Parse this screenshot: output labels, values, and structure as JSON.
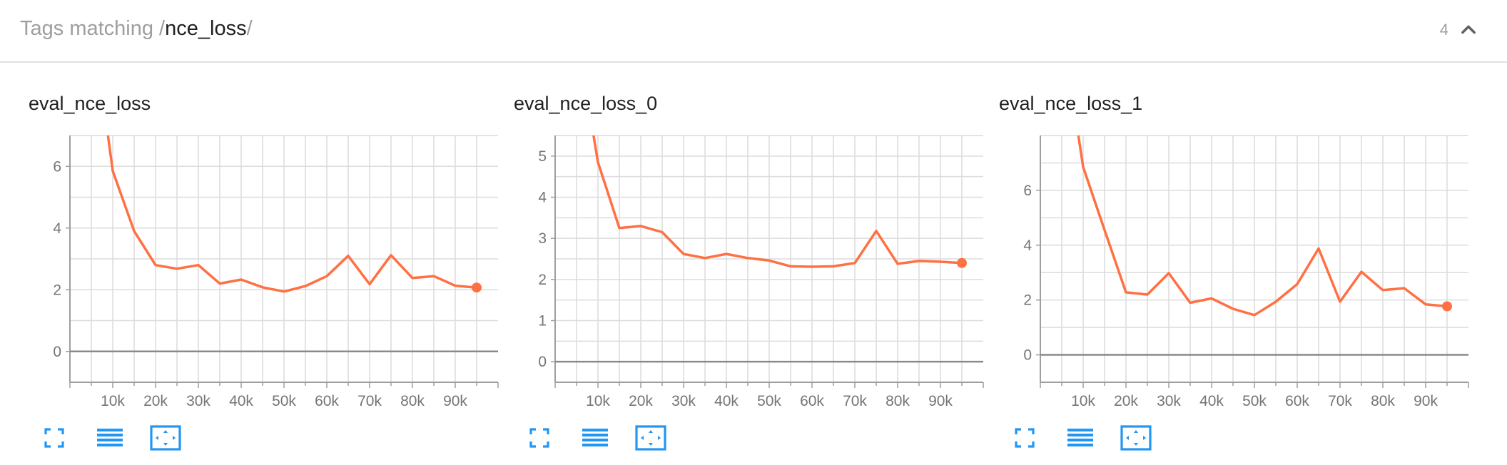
{
  "header": {
    "prefix": "Tags matching /",
    "query": "nce_loss",
    "suffix": "/",
    "count": "4",
    "collapse_icon": "chevron-up-icon"
  },
  "colors": {
    "series": "#ff7043",
    "grid": "#dcdcdc",
    "axis": "#9e9e9e",
    "zero": "#8a8a8a",
    "toolbar": "#2196f3"
  },
  "toolbar_icons": [
    "fullscreen-icon",
    "toggle-y-log-icon",
    "fit-domain-icon"
  ],
  "chart_data": [
    {
      "type": "line",
      "title": "eval_nce_loss",
      "xlim": [
        0,
        100000
      ],
      "ylim": [
        -1,
        7
      ],
      "xticks": [
        10000,
        20000,
        30000,
        40000,
        50000,
        60000,
        70000,
        80000,
        90000
      ],
      "xtick_labels": [
        "10k",
        "20k",
        "30k",
        "40k",
        "50k",
        "60k",
        "70k",
        "80k",
        "90k"
      ],
      "yticks": [
        0,
        2,
        4,
        6
      ],
      "ytick_labels": [
        "0",
        "2",
        "4",
        "6"
      ],
      "grid": true,
      "x": [
        5000,
        10000,
        15000,
        20000,
        25000,
        30000,
        35000,
        40000,
        45000,
        50000,
        55000,
        60000,
        65000,
        70000,
        75000,
        80000,
        85000,
        90000,
        95000
      ],
      "y": [
        11.0,
        5.85,
        3.9,
        2.8,
        2.68,
        2.8,
        2.2,
        2.33,
        2.08,
        1.94,
        2.12,
        2.44,
        3.1,
        2.18,
        3.12,
        2.38,
        2.44,
        2.13,
        2.07
      ]
    },
    {
      "type": "line",
      "title": "eval_nce_loss_0",
      "xlim": [
        0,
        100000
      ],
      "ylim": [
        -0.5,
        5.5
      ],
      "xticks": [
        10000,
        20000,
        30000,
        40000,
        50000,
        60000,
        70000,
        80000,
        90000
      ],
      "xtick_labels": [
        "10k",
        "20k",
        "30k",
        "40k",
        "50k",
        "60k",
        "70k",
        "80k",
        "90k"
      ],
      "yticks": [
        0,
        1,
        2,
        3,
        4,
        5
      ],
      "ytick_labels": [
        "0",
        "1",
        "2",
        "3",
        "4",
        "5"
      ],
      "grid": true,
      "x": [
        5000,
        10000,
        15000,
        20000,
        25000,
        30000,
        35000,
        40000,
        45000,
        50000,
        55000,
        60000,
        65000,
        70000,
        75000,
        80000,
        85000,
        90000,
        95000
      ],
      "y": [
        8.0,
        4.85,
        3.25,
        3.3,
        3.15,
        2.62,
        2.52,
        2.62,
        2.52,
        2.46,
        2.32,
        2.31,
        2.32,
        2.4,
        3.18,
        2.38,
        2.45,
        2.43,
        2.4
      ]
    },
    {
      "type": "line",
      "title": "eval_nce_loss_1",
      "xlim": [
        0,
        100000
      ],
      "ylim": [
        -1,
        8
      ],
      "xticks": [
        10000,
        20000,
        30000,
        40000,
        50000,
        60000,
        70000,
        80000,
        90000
      ],
      "xtick_labels": [
        "10k",
        "20k",
        "30k",
        "40k",
        "50k",
        "60k",
        "70k",
        "80k",
        "90k"
      ],
      "yticks": [
        0,
        2,
        4,
        6
      ],
      "ytick_labels": [
        "0",
        "2",
        "4",
        "6"
      ],
      "grid": true,
      "x": [
        5000,
        10000,
        15000,
        20000,
        25000,
        30000,
        35000,
        40000,
        45000,
        50000,
        55000,
        60000,
        65000,
        70000,
        75000,
        80000,
        85000,
        90000,
        95000
      ],
      "y": [
        12.0,
        6.85,
        4.55,
        2.28,
        2.2,
        2.98,
        1.9,
        2.06,
        1.68,
        1.45,
        1.94,
        2.58,
        3.88,
        1.94,
        3.03,
        2.36,
        2.43,
        1.84,
        1.77
      ]
    }
  ]
}
